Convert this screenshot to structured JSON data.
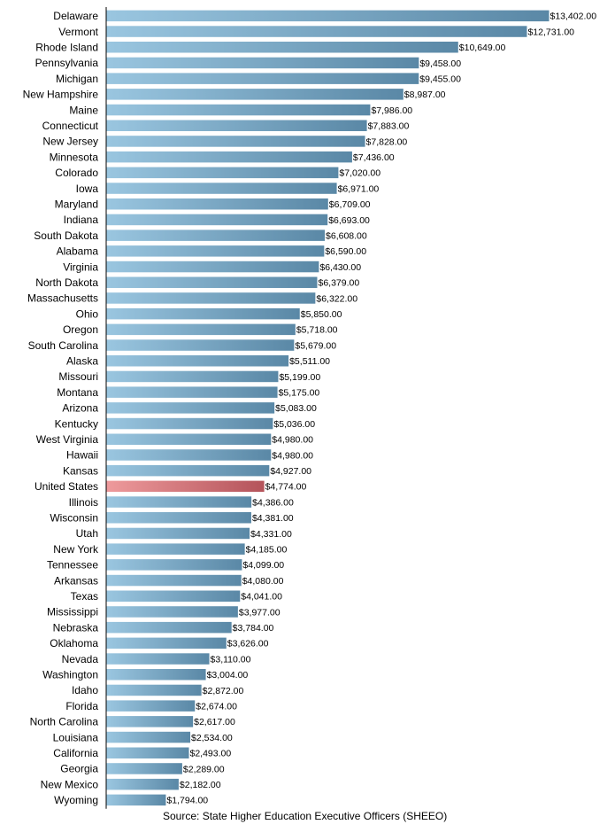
{
  "chart_data": {
    "type": "bar",
    "orientation": "horizontal",
    "categories": [
      "Delaware",
      "Vermont",
      "Rhode Island",
      "Pennsylvania",
      "Michigan",
      "New Hampshire",
      "Maine",
      "Connecticut",
      "New Jersey",
      "Minnesota",
      "Colorado",
      "Iowa",
      "Maryland",
      "Indiana",
      "South Dakota",
      "Alabama",
      "Virginia",
      "North Dakota",
      "Massachusetts",
      "Ohio",
      "Oregon",
      "South Carolina",
      "Alaska",
      "Missouri",
      "Montana",
      "Arizona",
      "Kentucky",
      "West Virginia",
      "Hawaii",
      "Kansas",
      "United States",
      "Illinois",
      "Wisconsin",
      "Utah",
      "New York",
      "Tennessee",
      "Arkansas",
      "Texas",
      "Mississippi",
      "Nebraska",
      "Oklahoma",
      "Nevada",
      "Washington",
      "Idaho",
      "Florida",
      "North Carolina",
      "Louisiana",
      "California",
      "Georgia",
      "New Mexico",
      "Wyoming"
    ],
    "values": [
      13402,
      12731,
      10649,
      9458,
      9455,
      8987,
      7986,
      7883,
      7828,
      7436,
      7020,
      6971,
      6709,
      6693,
      6608,
      6590,
      6430,
      6379,
      6322,
      5850,
      5718,
      5679,
      5511,
      5199,
      5175,
      5083,
      5036,
      4980,
      4980,
      4927,
      4774,
      4386,
      4381,
      4331,
      4185,
      4099,
      4080,
      4041,
      3977,
      3784,
      3626,
      3110,
      3004,
      2872,
      2674,
      2617,
      2534,
      2493,
      2289,
      2182,
      1794
    ],
    "value_labels": [
      "$13,402.00",
      "$12,731.00",
      "$10,649.00",
      "$9,458.00",
      "$9,455.00",
      "$8,987.00",
      "$7,986.00",
      "$7,883.00",
      "$7,828.00",
      "$7,436.00",
      "$7,020.00",
      "$6,971.00",
      "$6,709.00",
      "$6,693.00",
      "$6,608.00",
      "$6,590.00",
      "$6,430.00",
      "$6,379.00",
      "$6,322.00",
      "$5,850.00",
      "$5,718.00",
      "$5,679.00",
      "$5,511.00",
      "$5,199.00",
      "$5,175.00",
      "$5,083.00",
      "$5,036.00",
      "$4,980.00",
      "$4,980.00",
      "$4,927.00",
      "$4,774.00",
      "$4,386.00",
      "$4,381.00",
      "$4,331.00",
      "$4,185.00",
      "$4,099.00",
      "$4,080.00",
      "$4,041.00",
      "$3,977.00",
      "$3,784.00",
      "$3,626.00",
      "$3,110.00",
      "$3,004.00",
      "$2,872.00",
      "$2,674.00",
      "$2,617.00",
      "$2,534.00",
      "$2,493.00",
      "$2,289.00",
      "$2,182.00",
      "$1,794.00"
    ],
    "highlight_category": "United States",
    "xlim": [
      0,
      13402
    ],
    "grid": false,
    "legend": "none",
    "title": "",
    "xlabel": "",
    "ylabel": "",
    "colors": {
      "bar_light": "#9ac6e0",
      "bar_dark": "#5a88a6",
      "highlight_light": "#ee9a9c",
      "highlight_dark": "#b4535a",
      "axis": "#000000"
    }
  },
  "footer": {
    "source": "Source: State Higher Education Executive Officers (SHEEO)"
  }
}
